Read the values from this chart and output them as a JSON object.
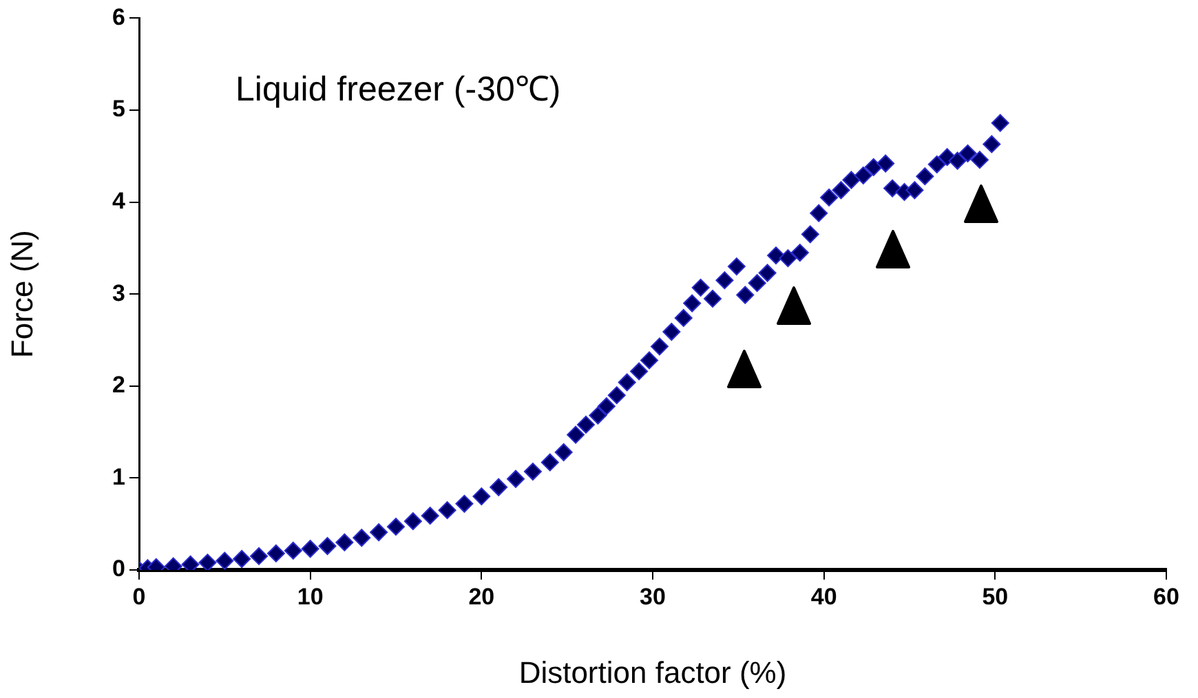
{
  "chart_data": {
    "type": "scatter",
    "title": "Liquid freezer (-30℃)",
    "xlabel": "Distortion factor (%)",
    "ylabel": "Force (N)",
    "xlim": [
      0,
      60
    ],
    "xticks": [
      0,
      10,
      20,
      30,
      40,
      50,
      60
    ],
    "ylim": [
      0,
      6
    ],
    "yticks": [
      0,
      1,
      2,
      3,
      4,
      5,
      6
    ],
    "grid": false,
    "legend": false,
    "marker": "diamond",
    "series": [
      {
        "color": "#000066",
        "x": [
          0,
          0.5,
          1,
          2,
          3,
          4,
          5,
          6,
          7,
          8,
          9,
          10,
          11,
          12,
          13,
          14,
          15,
          16,
          17,
          18,
          19,
          20,
          21,
          22,
          23,
          24,
          24.8,
          25.5,
          26.1,
          26.8,
          27.3,
          27.9,
          28.5,
          29.2,
          29.8,
          30.4,
          31.1,
          31.8,
          32.3,
          32.8,
          33.5,
          34.2,
          34.9,
          35.4,
          36.1,
          36.7,
          37.2,
          37.9,
          38.6,
          39.2,
          39.7,
          40.3,
          41.0,
          41.6,
          42.3,
          42.9,
          43.6,
          44.0,
          44.7,
          45.3,
          45.9,
          46.6,
          47.2,
          47.8,
          48.4,
          49.1,
          49.8,
          50.3
        ],
        "values": [
          0,
          0.02,
          0.03,
          0.04,
          0.06,
          0.08,
          0.1,
          0.12,
          0.15,
          0.18,
          0.21,
          0.23,
          0.26,
          0.3,
          0.35,
          0.41,
          0.47,
          0.53,
          0.59,
          0.65,
          0.72,
          0.8,
          0.9,
          0.99,
          1.07,
          1.17,
          1.28,
          1.47,
          1.58,
          1.68,
          1.78,
          1.9,
          2.04,
          2.16,
          2.28,
          2.43,
          2.59,
          2.74,
          2.9,
          3.07,
          2.95,
          3.15,
          3.3,
          2.99,
          3.12,
          3.23,
          3.42,
          3.39,
          3.45,
          3.65,
          3.88,
          4.05,
          4.13,
          4.24,
          4.29,
          4.38,
          4.42,
          4.15,
          4.11,
          4.13,
          4.28,
          4.41,
          4.49,
          4.45,
          4.53,
          4.46,
          4.63,
          4.86
        ]
      }
    ]
  }
}
